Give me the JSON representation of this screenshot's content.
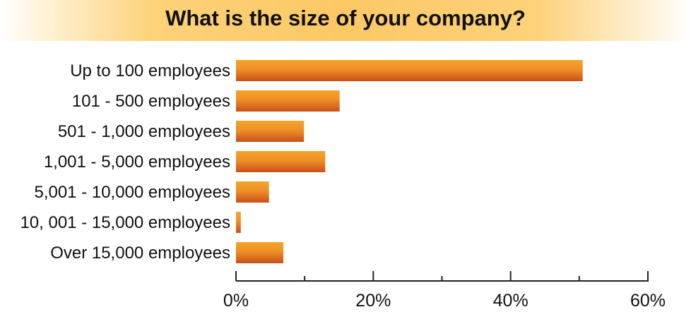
{
  "chart_data": {
    "type": "bar",
    "orientation": "horizontal",
    "title": "What is the size of your company?",
    "categories": [
      "Up to 100 employees",
      "101 - 500 employees",
      "501 - 1,000 employees",
      "1,001 - 5,000 employees",
      "5,001 - 10,000 employees",
      "10, 001 - 15,000 employees",
      "Over 15,000 employees"
    ],
    "values": [
      50.5,
      15.1,
      9.9,
      13.0,
      4.8,
      0.7,
      6.9
    ],
    "unit": "%",
    "xlim": [
      0,
      60
    ],
    "xticks": [
      0,
      20,
      40,
      60
    ],
    "xtick_labels": [
      "0%",
      "20%",
      "40%",
      "60%"
    ],
    "minor_xticks": [
      10,
      30,
      50
    ],
    "grid": false,
    "legend": "none",
    "colors": {
      "bar_top": "#f5a52a",
      "bar_bottom": "#c7501a",
      "title_band": "#fcc865",
      "axis": "#222222"
    }
  }
}
